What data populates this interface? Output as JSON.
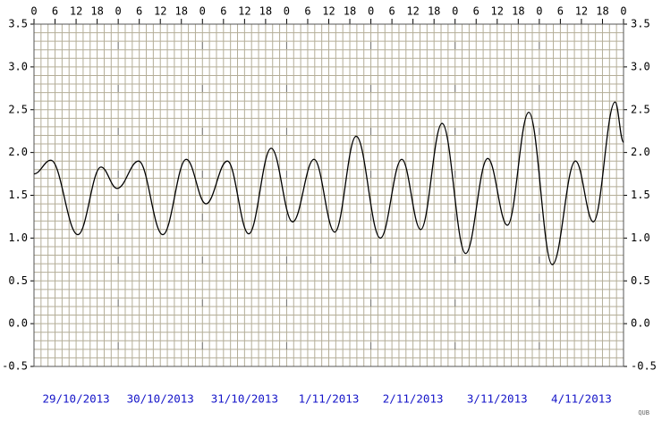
{
  "chart_data": {
    "type": "line",
    "x": [
      0,
      4.8,
      12.5,
      19.1,
      23.7,
      29.8,
      36.7,
      43.4,
      49,
      55.1,
      61.2,
      67.6,
      73.7,
      79.8,
      85.7,
      91.8,
      98.7,
      104.8,
      110.2,
      116.3,
      123,
      129.3,
      134.9,
      141,
      147.7,
      154.3,
      159.4,
      165.6,
      168
    ],
    "values": [
      1.75,
      1.91,
      1.04,
      1.83,
      1.58,
      1.9,
      1.04,
      1.92,
      1.4,
      1.9,
      1.05,
      2.05,
      1.19,
      1.92,
      1.07,
      2.19,
      1.0,
      1.92,
      1.1,
      2.34,
      0.82,
      1.93,
      1.15,
      2.47,
      0.69,
      1.9,
      1.19,
      2.59,
      2.12
    ],
    "color": "#000000",
    "xlim": [
      0,
      168
    ],
    "xticks": [
      0,
      6,
      12,
      18,
      {
        "value": 24,
        "label": "0"
      },
      {
        "value": 30,
        "label": "6"
      },
      {
        "value": 36,
        "label": "12"
      },
      {
        "value": 42,
        "label": "18"
      },
      {
        "value": 48,
        "label": "0"
      },
      {
        "value": 54,
        "label": "6"
      },
      {
        "value": 60,
        "label": "12"
      },
      {
        "value": 66,
        "label": "18"
      },
      {
        "value": 72,
        "label": "0"
      },
      {
        "value": 78,
        "label": "6"
      },
      {
        "value": 84,
        "label": "12"
      },
      {
        "value": 90,
        "label": "18"
      },
      {
        "value": 96,
        "label": "0"
      },
      {
        "value": 102,
        "label": "6"
      },
      {
        "value": 108,
        "label": "12"
      },
      {
        "value": 114,
        "label": "18"
      },
      {
        "value": 120,
        "label": "0"
      },
      {
        "value": 126,
        "label": "6"
      },
      {
        "value": 132,
        "label": "12"
      },
      {
        "value": 138,
        "label": "18"
      },
      {
        "value": 144,
        "label": "0"
      },
      {
        "value": 150,
        "label": "6"
      },
      {
        "value": 156,
        "label": "12"
      },
      {
        "value": 162,
        "label": "18"
      },
      {
        "value": 168,
        "label": "0"
      }
    ],
    "ylim": [
      -0.5,
      3.5
    ],
    "yticks": [
      -0.5,
      {
        "value": 0,
        "label": "0.0"
      },
      0.5,
      {
        "value": 1,
        "label": "1.0"
      },
      1.5,
      {
        "value": 2,
        "label": "2.0"
      },
      2.5,
      {
        "value": 3,
        "label": "3.0"
      },
      3.5
    ],
    "day_labels": [
      "29/10/2013",
      "30/10/2013",
      "31/10/2013",
      "1/11/2013",
      "2/11/2013",
      "3/11/2013",
      "4/11/2013"
    ],
    "grid": {
      "x_minor": 2,
      "y_minor": 0.1
    },
    "credit": "QUB"
  }
}
